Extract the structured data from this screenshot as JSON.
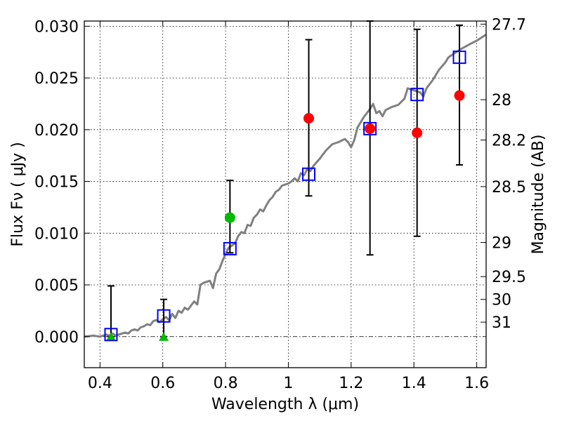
{
  "chart_data": {
    "type": "scatter",
    "xlabel": "Wavelength  λ (μm)",
    "ylabel": "Flux  Fν  ( μJy )",
    "y2label": "Magnitude (AB)",
    "xlim": [
      0.35,
      1.63
    ],
    "ylim": [
      -0.003,
      0.0305
    ],
    "grid": true,
    "x_ticks": [
      {
        "value": 0.4,
        "label": "0.4"
      },
      {
        "value": 0.6,
        "label": "0.6"
      },
      {
        "value": 0.8,
        "label": "0.8"
      },
      {
        "value": 1.0,
        "label": "1"
      },
      {
        "value": 1.2,
        "label": "1.2"
      },
      {
        "value": 1.4,
        "label": "1.4"
      },
      {
        "value": 1.6,
        "label": "1.6"
      }
    ],
    "y_ticks": [
      {
        "value": 0.0,
        "label": "0.000"
      },
      {
        "value": 0.005,
        "label": "0.005"
      },
      {
        "value": 0.01,
        "label": "0.010"
      },
      {
        "value": 0.015,
        "label": "0.015"
      },
      {
        "value": 0.02,
        "label": "0.020"
      },
      {
        "value": 0.025,
        "label": "0.025"
      },
      {
        "value": 0.03,
        "label": "0.030"
      }
    ],
    "y2_ticks": [
      {
        "label": "27.7",
        "flux": 0.0302
      },
      {
        "label": "28",
        "flux": 0.0229
      },
      {
        "label": "28.2",
        "flux": 0.019
      },
      {
        "label": "28.5",
        "flux": 0.0145
      },
      {
        "label": "29",
        "flux": 0.0091
      },
      {
        "label": "29.5",
        "flux": 0.0058
      },
      {
        "label": "30",
        "flux": 0.0036
      },
      {
        "label": "31",
        "flux": 0.0014
      }
    ],
    "zero_line": 0.0,
    "model_spectrum": {
      "color": "#808080",
      "x": [
        0.35,
        0.38,
        0.4,
        0.42,
        0.43,
        0.44,
        0.45,
        0.47,
        0.48,
        0.49,
        0.5,
        0.51,
        0.52,
        0.53,
        0.54,
        0.55,
        0.56,
        0.57,
        0.58,
        0.59,
        0.6,
        0.61,
        0.62,
        0.63,
        0.64,
        0.65,
        0.66,
        0.67,
        0.68,
        0.69,
        0.7,
        0.71,
        0.72,
        0.73,
        0.74,
        0.75,
        0.76,
        0.77,
        0.78,
        0.79,
        0.8,
        0.81,
        0.82,
        0.83,
        0.84,
        0.85,
        0.86,
        0.87,
        0.88,
        0.89,
        0.9,
        0.91,
        0.92,
        0.93,
        0.94,
        0.95,
        0.96,
        0.97,
        0.98,
        0.99,
        1.0,
        1.01,
        1.02,
        1.03,
        1.04,
        1.05,
        1.06,
        1.07,
        1.08,
        1.1,
        1.12,
        1.14,
        1.16,
        1.18,
        1.19,
        1.2,
        1.21,
        1.22,
        1.24,
        1.26,
        1.27,
        1.28,
        1.29,
        1.3,
        1.31,
        1.33,
        1.35,
        1.37,
        1.38,
        1.4,
        1.42,
        1.43,
        1.44,
        1.46,
        1.48,
        1.5,
        1.51,
        1.52,
        1.55,
        1.58,
        1.6,
        1.63
      ],
      "y": [
        0.0,
        0.0001,
        0.0,
        0.0002,
        0.0001,
        0.0003,
        0.0001,
        0.0003,
        0.0004,
        0.0003,
        0.0006,
        0.0007,
        0.0006,
        0.0009,
        0.001,
        0.0012,
        0.0011,
        0.0015,
        0.0016,
        0.0014,
        0.0017,
        0.0019,
        0.0016,
        0.0022,
        0.0018,
        0.0025,
        0.0023,
        0.0028,
        0.0026,
        0.003,
        0.0034,
        0.0031,
        0.005,
        0.0052,
        0.0053,
        0.0054,
        0.0047,
        0.0061,
        0.0065,
        0.0073,
        0.008,
        0.0086,
        0.0088,
        0.009,
        0.0097,
        0.0101,
        0.01,
        0.0108,
        0.0107,
        0.0115,
        0.0118,
        0.0123,
        0.0121,
        0.0127,
        0.0132,
        0.0135,
        0.014,
        0.0142,
        0.0146,
        0.0147,
        0.0148,
        0.015,
        0.0153,
        0.015,
        0.0158,
        0.0156,
        0.0162,
        0.016,
        0.0165,
        0.0172,
        0.018,
        0.0186,
        0.0188,
        0.0191,
        0.0188,
        0.0183,
        0.019,
        0.0202,
        0.0212,
        0.022,
        0.0225,
        0.0216,
        0.0218,
        0.0213,
        0.0219,
        0.0222,
        0.0224,
        0.023,
        0.024,
        0.0238,
        0.0236,
        0.0232,
        0.024,
        0.0248,
        0.0258,
        0.0265,
        0.027,
        0.0272,
        0.0278,
        0.0283,
        0.0286,
        0.0292
      ]
    },
    "model_points": {
      "color": "#0000ff",
      "x": [
        0.435,
        0.603,
        0.814,
        1.065,
        1.26,
        1.41,
        1.545
      ],
      "y": [
        0.0002,
        0.002,
        0.0085,
        0.0157,
        0.0201,
        0.0234,
        0.027
      ]
    },
    "observed_red": {
      "color": "#ff0000",
      "x": [
        1.065,
        1.26,
        1.41,
        1.545
      ],
      "y": [
        0.0211,
        0.0201,
        0.0197,
        0.0233
      ],
      "err_low": [
        0.0136,
        0.0079,
        0.0097,
        0.0166
      ],
      "err_high": [
        0.0287,
        0.0305,
        0.0297,
        0.0301
      ]
    },
    "observed_green_circle": {
      "color": "#00bb00",
      "x": [
        0.814
      ],
      "y": [
        0.0115
      ],
      "err_low": [
        0.0081
      ],
      "err_high": [
        0.0151
      ]
    },
    "upper_limits_green": {
      "color": "#00bb00",
      "x": [
        0.435,
        0.603
      ],
      "y": [
        0.0,
        0.0
      ],
      "err_high": [
        0.0049,
        0.0036
      ]
    }
  }
}
